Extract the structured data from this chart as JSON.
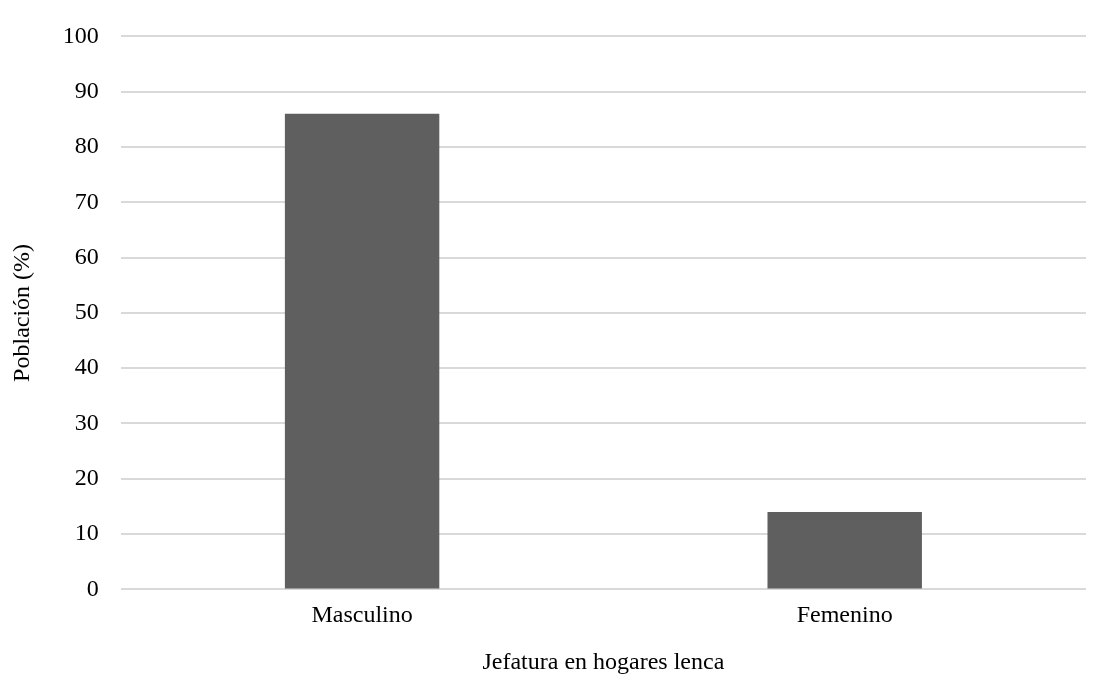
{
  "chart_data": {
    "type": "bar",
    "xlabel": "Jefatura en hogares lenca",
    "ylabel": "Población (%)",
    "categories": [
      "Masculino",
      "Femenino"
    ],
    "values": [
      86,
      14
    ],
    "color": "#5f5f5f",
    "ylim": [
      0,
      100
    ],
    "yticks": [
      0,
      10,
      20,
      30,
      40,
      50,
      60,
      70,
      80,
      90,
      100
    ],
    "grid": "y",
    "legend": false
  }
}
